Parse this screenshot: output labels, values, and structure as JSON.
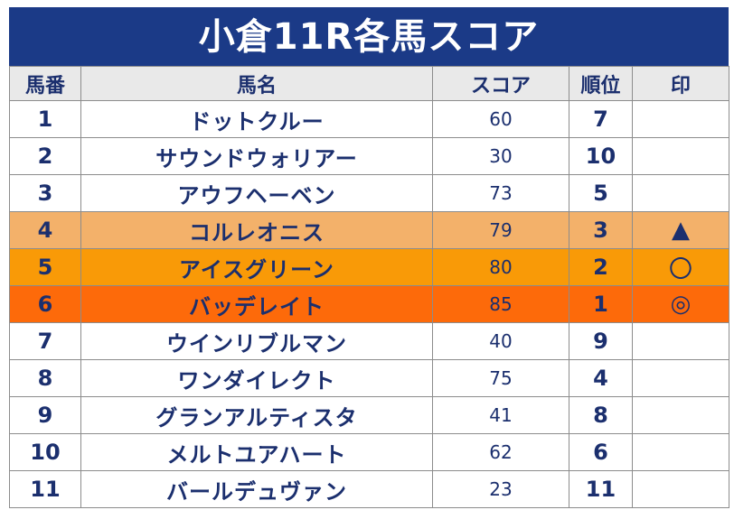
{
  "title": "小倉11R各馬スコア",
  "headers": {
    "number": "馬番",
    "name": "馬名",
    "score": "スコア",
    "rank": "順位",
    "mark": "印"
  },
  "rows": [
    {
      "number": "1",
      "name": "ドットクルー",
      "score": "60",
      "rank": "7",
      "mark": ""
    },
    {
      "number": "2",
      "name": "サウンドウォリアー",
      "score": "30",
      "rank": "10",
      "mark": ""
    },
    {
      "number": "3",
      "name": "アウフヘーベン",
      "score": "73",
      "rank": "5",
      "mark": ""
    },
    {
      "number": "4",
      "name": "コルレオニス",
      "score": "79",
      "rank": "3",
      "mark": "▲"
    },
    {
      "number": "5",
      "name": "アイスグリーン",
      "score": "80",
      "rank": "2",
      "mark": "〇"
    },
    {
      "number": "6",
      "name": "バッデレイト",
      "score": "85",
      "rank": "1",
      "mark": "◎"
    },
    {
      "number": "7",
      "name": "ウインリブルマン",
      "score": "40",
      "rank": "9",
      "mark": ""
    },
    {
      "number": "8",
      "name": "ワンダイレクト",
      "score": "75",
      "rank": "4",
      "mark": ""
    },
    {
      "number": "9",
      "name": "グランアルティスタ",
      "score": "41",
      "rank": "8",
      "mark": ""
    },
    {
      "number": "10",
      "name": "メルトユアハート",
      "score": "62",
      "rank": "6",
      "mark": ""
    },
    {
      "number": "11",
      "name": "バールデュヴァン",
      "score": "23",
      "rank": "11",
      "mark": ""
    }
  ],
  "colors": {
    "header_bg": "#1b3a87",
    "rank1_bg": "#fd6a0a",
    "rank2_bg": "#f99a07",
    "rank3_bg": "#f3b16a",
    "text": "#1b2f6e"
  }
}
